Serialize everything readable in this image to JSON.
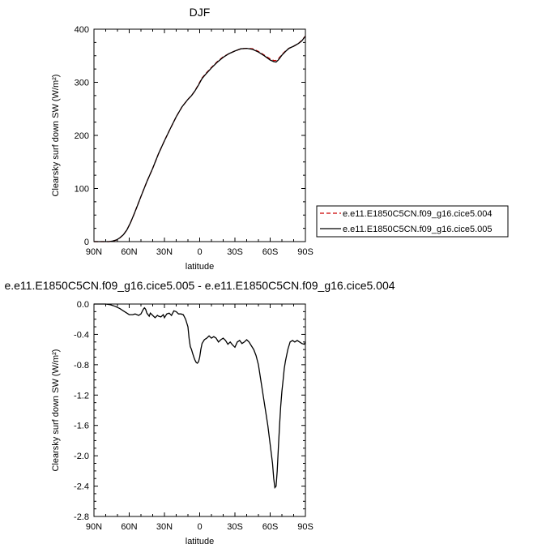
{
  "chart_data": [
    {
      "type": "line",
      "title": "DJF",
      "xlabel": "latitude",
      "ylabel": "Clearsky surf down SW (W/m²)",
      "xlim": [
        90,
        -90
      ],
      "ylim": [
        0,
        400
      ],
      "xticks": [
        90,
        60,
        30,
        0,
        -30,
        -60,
        -90
      ],
      "xtick_labels": [
        "90N",
        "60N",
        "30N",
        "0",
        "30S",
        "60S",
        "90S"
      ],
      "yticks": [
        0,
        100,
        200,
        300,
        400
      ],
      "ytick_labels": [
        "0",
        "100",
        "200",
        "300",
        "400"
      ],
      "grid": false,
      "legend_position": "right",
      "series": [
        {
          "name": "e.e11.E1850C5CN.f09_g16.cice5.004",
          "color": "#cc0000",
          "style": "dashed",
          "x": [
            90,
            84,
            80,
            77,
            74,
            71,
            68,
            65,
            62,
            59,
            56,
            53,
            50,
            45,
            40,
            35,
            30,
            25,
            20,
            15,
            10,
            7,
            4,
            1,
            -2,
            -5,
            -10,
            -15,
            -20,
            -25,
            -30,
            -35,
            -40,
            -45,
            -50,
            -55,
            -60,
            -63,
            -65,
            -67,
            -70,
            -73,
            -76,
            -80,
            -84,
            -87,
            -90
          ],
          "y": [
            0,
            0,
            0,
            0,
            1,
            3,
            7,
            13,
            22,
            35,
            51,
            68,
            85,
            113,
            138,
            166,
            190,
            213,
            235,
            254,
            268,
            275,
            284,
            296,
            308,
            316,
            328,
            339,
            348,
            354,
            359,
            363,
            364,
            363,
            358,
            351,
            344,
            341,
            341,
            344,
            352,
            359,
            364,
            368,
            373,
            379,
            387
          ]
        },
        {
          "name": "e.e11.E1850C5CN.f09_g16.cice5.005",
          "color": "#000000",
          "style": "solid",
          "x": [
            90,
            84,
            80,
            77,
            74,
            71,
            68,
            65,
            62,
            59,
            56,
            53,
            50,
            45,
            40,
            35,
            30,
            25,
            20,
            15,
            10,
            7,
            4,
            1,
            -2,
            -5,
            -10,
            -15,
            -20,
            -25,
            -30,
            -35,
            -40,
            -45,
            -50,
            -55,
            -60,
            -63,
            -65,
            -67,
            -70,
            -73,
            -76,
            -80,
            -84,
            -87,
            -90
          ],
          "y": [
            0,
            0,
            0,
            0,
            1,
            3,
            7,
            13,
            22,
            35,
            51,
            68,
            85,
            113,
            138,
            166,
            190,
            213,
            235,
            254,
            268,
            275,
            284,
            295,
            307,
            315,
            327,
            338,
            347,
            354,
            359,
            363,
            364,
            362,
            357,
            350,
            342,
            339,
            338,
            342,
            351,
            358,
            364,
            368,
            373,
            378,
            387
          ]
        }
      ]
    },
    {
      "type": "line",
      "title": "e.e11.E1850C5CN.f09_g16.cice5.005 - e.e11.E1850C5CN.f09_g16.cice5.004",
      "xlabel": "latitude",
      "ylabel": "Clearsky surf down SW (W/m²)",
      "xlim": [
        90,
        -90
      ],
      "ylim": [
        -2.8,
        0.0
      ],
      "xticks": [
        90,
        60,
        30,
        0,
        -30,
        -60,
        -90
      ],
      "xtick_labels": [
        "90N",
        "60N",
        "30N",
        "0",
        "30S",
        "60S",
        "90S"
      ],
      "yticks": [
        0.0,
        -0.4,
        -0.8,
        -1.2,
        -1.6,
        -2.0,
        -2.4,
        -2.8
      ],
      "ytick_labels": [
        "0.0",
        "-0.4",
        "-0.8",
        "-1.2",
        "-1.6",
        "-2.0",
        "-2.4",
        "-2.8"
      ],
      "grid": false,
      "series": [
        {
          "color": "#000000",
          "style": "solid",
          "x": [
            90,
            85,
            80,
            76,
            72,
            68,
            65,
            62,
            60,
            57,
            55,
            52,
            50,
            48,
            47,
            46,
            45,
            43,
            42,
            40,
            38,
            36,
            35,
            33,
            31,
            30,
            28,
            26,
            24,
            22,
            20,
            18,
            16,
            14,
            12,
            10,
            9,
            8,
            7,
            6,
            5,
            4,
            3,
            2,
            1,
            0,
            -1,
            -2,
            -4,
            -6,
            -8,
            -10,
            -12,
            -14,
            -16,
            -18,
            -20,
            -22,
            -24,
            -26,
            -28,
            -30,
            -32,
            -34,
            -36,
            -38,
            -40,
            -42,
            -44,
            -46,
            -48,
            -50,
            -52,
            -54,
            -56,
            -58,
            -60,
            -62,
            -63,
            -64,
            -65,
            -66,
            -67,
            -68,
            -69,
            -70,
            -71,
            -72,
            -73,
            -75,
            -77,
            -79,
            -81,
            -83,
            -85,
            -87,
            -89,
            -90
          ],
          "y": [
            0.0,
            0.0,
            0.0,
            -0.01,
            -0.03,
            -0.06,
            -0.09,
            -0.12,
            -0.14,
            -0.14,
            -0.13,
            -0.15,
            -0.13,
            -0.07,
            -0.05,
            -0.07,
            -0.12,
            -0.16,
            -0.12,
            -0.15,
            -0.18,
            -0.15,
            -0.16,
            -0.17,
            -0.14,
            -0.18,
            -0.13,
            -0.12,
            -0.15,
            -0.09,
            -0.1,
            -0.13,
            -0.13,
            -0.14,
            -0.2,
            -0.3,
            -0.45,
            -0.56,
            -0.6,
            -0.65,
            -0.7,
            -0.74,
            -0.77,
            -0.78,
            -0.76,
            -0.7,
            -0.6,
            -0.52,
            -0.47,
            -0.45,
            -0.42,
            -0.45,
            -0.43,
            -0.45,
            -0.5,
            -0.47,
            -0.45,
            -0.48,
            -0.53,
            -0.5,
            -0.54,
            -0.57,
            -0.5,
            -0.48,
            -0.52,
            -0.5,
            -0.47,
            -0.5,
            -0.55,
            -0.6,
            -0.68,
            -0.8,
            -1.0,
            -1.2,
            -1.4,
            -1.6,
            -1.85,
            -2.1,
            -2.3,
            -2.42,
            -2.4,
            -2.2,
            -1.9,
            -1.6,
            -1.35,
            -1.15,
            -1.0,
            -0.85,
            -0.75,
            -0.6,
            -0.5,
            -0.48,
            -0.5,
            -0.48,
            -0.5,
            -0.52,
            -0.53,
            -0.5
          ]
        }
      ]
    }
  ]
}
